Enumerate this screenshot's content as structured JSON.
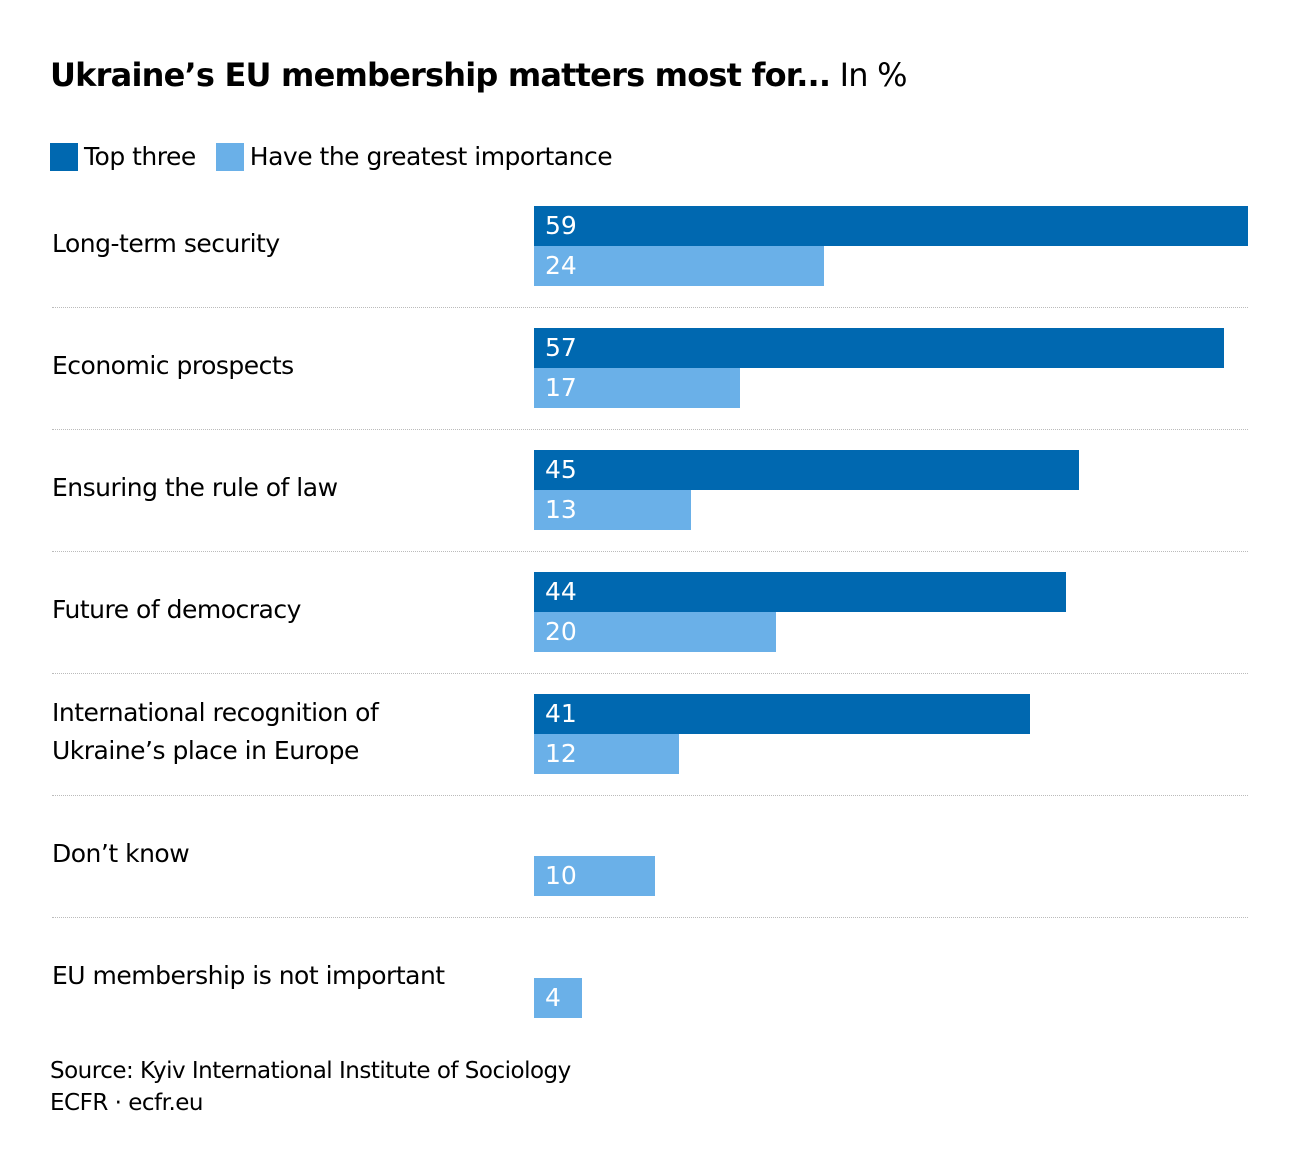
{
  "chart_data": {
    "type": "bar",
    "orientation": "horizontal",
    "title": "Ukraine’s EU membership matters most for...",
    "unit": "In %",
    "categories": [
      "Long-term security",
      "Economic prospects",
      "Ensuring the rule of law",
      "Future of democracy",
      "International recognition of Ukraine’s place in Europe",
      "Don’t know",
      "EU membership is not important"
    ],
    "category_lines": [
      [
        "Long-term security"
      ],
      [
        "Economic prospects"
      ],
      [
        "Ensuring the rule of law"
      ],
      [
        "Future of democracy"
      ],
      [
        "International recognition of",
        "Ukraine’s place in Europe"
      ],
      [
        "Don’t know"
      ],
      [
        "EU membership is not important"
      ]
    ],
    "series": [
      {
        "name": "Top three",
        "color": "#0068b0",
        "values": [
          59,
          57,
          45,
          44,
          41,
          null,
          null
        ]
      },
      {
        "name": "Have the greatest importance",
        "color": "#6ab0e8",
        "values": [
          24,
          17,
          13,
          20,
          12,
          10,
          4
        ]
      }
    ],
    "xlim": [
      0,
      59
    ],
    "grid": false,
    "legend": "top-left",
    "data_labels": true
  },
  "footer": {
    "source": "Source: Kyiv International Institute of Sociology",
    "credit": "ECFR · ecfr.eu"
  }
}
